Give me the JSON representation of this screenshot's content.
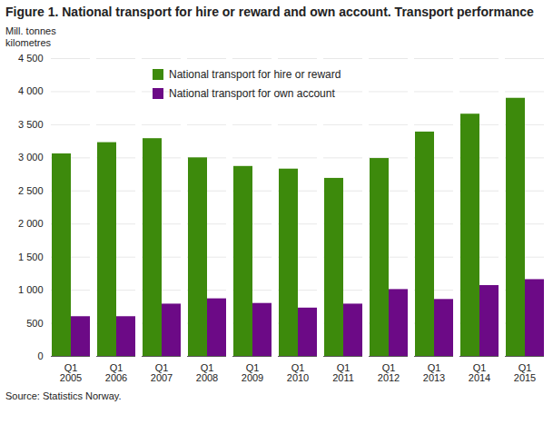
{
  "chart_data": {
    "type": "bar",
    "title": "Figure 1. National transport for hire or reward and own account. Transport performance",
    "y_label": "Mill. tonnes\nkilometres",
    "source": "Source: Statistics Norway.",
    "categories": [
      "Q1\n2005",
      "Q1\n2006",
      "Q1\n2007",
      "Q1\n2008",
      "Q1\n2009",
      "Q1\n2010",
      "Q1\n2011",
      "Q1\n2012",
      "Q1\n2013",
      "Q1\n2014",
      "Q1\n2015"
    ],
    "series": [
      {
        "name": "National transport for hire or reward",
        "color": "#3d8a0c",
        "values": [
          3060,
          3230,
          3290,
          3000,
          2870,
          2830,
          2690,
          2990,
          3390,
          3660,
          3900
        ]
      },
      {
        "name": "National transport for own account",
        "color": "#6c0a86",
        "values": [
          600,
          600,
          790,
          870,
          800,
          730,
          790,
          1010,
          860,
          1070,
          1160
        ]
      }
    ],
    "ylim": [
      0,
      4500
    ],
    "yticks": [
      0,
      500,
      {
        "value": 1000,
        "label": "1 000"
      },
      {
        "value": 1500,
        "label": "1 500"
      },
      {
        "value": 2000,
        "label": "2 000"
      },
      {
        "value": 2500,
        "label": "2 500"
      },
      {
        "value": 3000,
        "label": "3 000"
      },
      {
        "value": 3500,
        "label": "3 500"
      },
      {
        "value": 4000,
        "label": "4 000"
      },
      {
        "value": 4500,
        "label": "4 500"
      }
    ],
    "grid": true,
    "legend": "top"
  }
}
